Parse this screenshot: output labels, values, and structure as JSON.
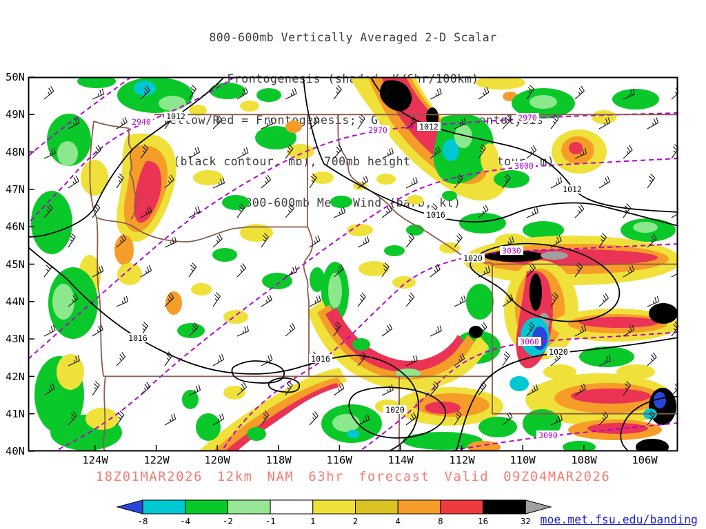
{
  "title": {
    "lines": [
      "800-600mb Vertically Averaged 2-D Scalar",
      "Frontogenesis (shaded, K/6hr/100km)",
      "Yellow/Red = Frontogenesis;  Green/Blue = Frontolysis",
      "MSLP (black contour, mb), 700mb height (purple contour, m) &",
      "800-600mb Mean Wind (barb, kt)"
    ]
  },
  "axes": {
    "lat": [
      "50N",
      "49N",
      "48N",
      "47N",
      "46N",
      "45N",
      "44N",
      "43N",
      "42N",
      "41N",
      "40N"
    ],
    "lon": [
      "124W",
      "122W",
      "120W",
      "118W",
      "116W",
      "114W",
      "112W",
      "110W",
      "108W",
      "106W"
    ]
  },
  "contour_labels": {
    "mslp": [
      "1012",
      "1012",
      "1012",
      "1016",
      "1016",
      "1016",
      "1020",
      "1020",
      "1020"
    ],
    "height": [
      "2940",
      "2970",
      "2970",
      "3000",
      "3030",
      "3060",
      "3090"
    ]
  },
  "caption": "18Z01MAR2026 12km NAM 63hr forecast Valid 09Z04MAR2026",
  "link": "moe.met.fsu.edu/banding",
  "colorbar": {
    "labels": [
      "-8",
      "-4",
      "-2",
      "-1",
      "1",
      "2",
      "4",
      "8",
      "16",
      "32"
    ],
    "colors": [
      "#2a46d8",
      "#00c8d2",
      "#0ac82a",
      "#96e696",
      "#ffffff",
      "#f0e13a",
      "#d9c222",
      "#f59d28",
      "#ee3b3f",
      "#000000",
      "#a0a0a0"
    ]
  },
  "colors": {
    "caption": "#f87c72",
    "height_contour": "#b400d3",
    "state_border": "#8a5c4a",
    "mslp_contour": "#000000",
    "link": "#2222cc"
  }
}
